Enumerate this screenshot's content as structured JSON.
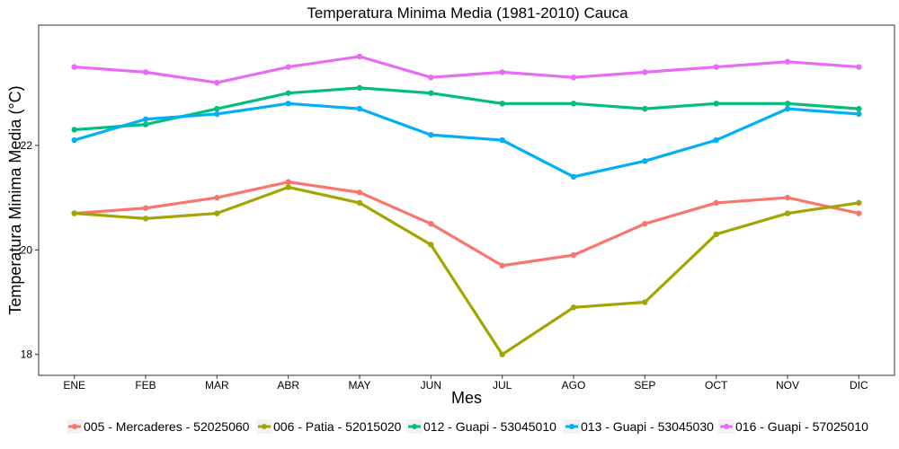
{
  "chart_data": {
    "type": "line",
    "title": "Temperatura Minima Media (1981-2010)  Cauca",
    "xlabel": "Mes",
    "ylabel": "Temperatura Minima Media  (°C)",
    "categories": [
      "ENE",
      "FEB",
      "MAR",
      "ABR",
      "MAY",
      "JUN",
      "JUL",
      "AGO",
      "SEP",
      "OCT",
      "NOV",
      "DIC"
    ],
    "ylim": [
      17.6,
      24.3
    ],
    "yticks": [
      18,
      20,
      22
    ],
    "grid": false,
    "legend_position": "bottom",
    "series": [
      {
        "name": "005 - Mercaderes - 52025060",
        "color": "#F8766D",
        "values": [
          20.7,
          20.8,
          21.0,
          21.3,
          21.1,
          20.5,
          19.7,
          19.9,
          20.5,
          20.9,
          21.0,
          20.7
        ]
      },
      {
        "name": "006 - Patia - 52015020",
        "color": "#A3A500",
        "values": [
          20.7,
          20.6,
          20.7,
          21.2,
          20.9,
          20.1,
          18.0,
          18.9,
          19.0,
          20.3,
          20.7,
          20.9
        ]
      },
      {
        "name": "012 - Guapi - 53045010",
        "color": "#00BF7D",
        "values": [
          22.3,
          22.4,
          22.7,
          23.0,
          23.1,
          23.0,
          22.8,
          22.8,
          22.7,
          22.8,
          22.8,
          22.7
        ]
      },
      {
        "name": "013 - Guapi - 53045030",
        "color": "#00B0F6",
        "values": [
          22.1,
          22.5,
          22.6,
          22.8,
          22.7,
          22.2,
          22.1,
          21.4,
          21.7,
          22.1,
          22.7,
          22.6
        ]
      },
      {
        "name": "016 - Guapi - 57025010",
        "color": "#E76BF3",
        "values": [
          23.5,
          23.4,
          23.2,
          23.5,
          23.7,
          23.3,
          23.4,
          23.3,
          23.4,
          23.5,
          23.6,
          23.5
        ]
      }
    ]
  }
}
